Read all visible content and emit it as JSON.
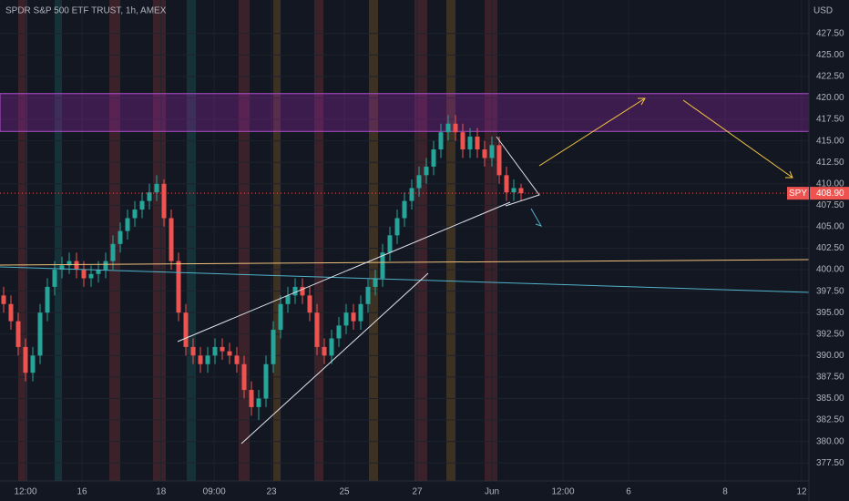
{
  "chart_data": {
    "type": "candlestick",
    "title": "SPDR S&P 500 ETF TRUST, 1h, AMEX",
    "currency": "USD",
    "symbol_label": "SPY",
    "last_price": {
      "value": 408.9,
      "label": "408.90"
    },
    "resistance_zone": [
      416.1,
      420.5
    ],
    "up_color": "#26a69a",
    "down_color": "#ef5350",
    "grid": true,
    "xlim": [
      -0.5,
      110.5
    ],
    "ylim": [
      375.4,
      431.4
    ],
    "xticks": [
      {
        "value": 3,
        "label": "12:00"
      },
      {
        "value": 10.75,
        "label": "16"
      },
      {
        "value": 21.6,
        "label": "18"
      },
      {
        "value": 28.9,
        "label": "09:00"
      },
      {
        "value": 36.75,
        "label": "23"
      },
      {
        "value": 46.75,
        "label": "25"
      },
      {
        "value": 56.75,
        "label": "27"
      },
      {
        "value": 67,
        "label": "Jun"
      },
      {
        "value": 76.75,
        "label": "12:00"
      },
      {
        "value": 85.75,
        "label": "6"
      },
      {
        "value": 99,
        "label": "8"
      },
      {
        "value": 109.5,
        "label": "12"
      }
    ],
    "yticks": [
      {
        "value": 377.5,
        "label": "377.50"
      },
      {
        "value": 380,
        "label": "380.00"
      },
      {
        "value": 382.5,
        "label": "382.50"
      },
      {
        "value": 385,
        "label": "385.00"
      },
      {
        "value": 387.5,
        "label": "387.50"
      },
      {
        "value": 390,
        "label": "390.00"
      },
      {
        "value": 392.5,
        "label": "392.50"
      },
      {
        "value": 395,
        "label": "395.00"
      },
      {
        "value": 397.5,
        "label": "397.50"
      },
      {
        "value": 400,
        "label": "400.00"
      },
      {
        "value": 402.5,
        "label": "402.50"
      },
      {
        "value": 405,
        "label": "405.00"
      },
      {
        "value": 407.5,
        "label": "407.50"
      },
      {
        "value": 410,
        "label": "410.00"
      },
      {
        "value": 412.5,
        "label": "412.50"
      },
      {
        "value": 415,
        "label": "415.00"
      },
      {
        "value": 417.5,
        "label": "417.50"
      },
      {
        "value": 420,
        "label": "420.00"
      },
      {
        "value": 422.5,
        "label": "422.50"
      },
      {
        "value": 425,
        "label": "425.00"
      },
      {
        "value": 427.5,
        "label": "427.50"
      }
    ],
    "open": [
      397,
      396,
      394,
      391,
      388,
      390,
      395,
      398,
      400,
      400.5,
      401,
      400,
      399,
      399.5,
      400,
      401,
      403,
      404.5,
      406,
      407,
      408,
      409,
      410,
      406,
      401,
      395,
      391,
      390,
      389,
      390,
      391,
      390.5,
      390,
      389,
      386,
      384,
      385,
      389,
      393,
      396,
      397,
      398,
      397,
      395,
      391,
      390,
      392,
      393.5,
      395,
      394,
      396,
      398,
      399,
      402,
      404,
      406,
      408,
      409.5,
      411,
      412,
      414,
      416,
      417,
      416,
      414,
      415.5,
      414,
      413,
      414.5,
      411,
      409,
      409.5
    ],
    "high": [
      398,
      397,
      395,
      392,
      391,
      396,
      399,
      401,
      401.5,
      402,
      402,
      401,
      400.5,
      401,
      402,
      404,
      405.5,
      407,
      408,
      409,
      410,
      411,
      410.5,
      407,
      402,
      396,
      392,
      391,
      391,
      392,
      392,
      391.5,
      391,
      390,
      387,
      386,
      390,
      394,
      397,
      398,
      399,
      399,
      398,
      396,
      392,
      393,
      394.5,
      396,
      396,
      397,
      399,
      400,
      403,
      405,
      407,
      409,
      410.5,
      412,
      413,
      415,
      417,
      418,
      418,
      417,
      416.5,
      416.5,
      415,
      415.5,
      415.5,
      412,
      410.5,
      410
    ],
    "low": [
      395,
      393,
      390,
      387,
      387,
      389,
      394,
      397,
      399,
      399.5,
      399,
      398,
      398,
      398.5,
      399,
      400,
      402,
      403.5,
      405,
      406,
      407,
      408,
      405,
      400,
      394,
      390,
      389,
      388,
      388,
      389,
      389.5,
      389,
      388,
      385,
      383,
      382.5,
      384,
      388,
      392,
      395,
      396,
      396,
      394,
      390,
      389,
      389,
      391,
      392.5,
      393,
      393,
      395,
      397,
      398,
      401,
      403,
      405,
      407,
      408.5,
      410,
      411,
      413,
      415,
      415,
      413,
      413,
      413,
      412,
      412,
      410,
      408,
      408,
      408
    ],
    "close": [
      396,
      394,
      391,
      388,
      390,
      395,
      398,
      400,
      400.5,
      401,
      400,
      399,
      399.5,
      400,
      401,
      403,
      404.5,
      406,
      407,
      408,
      409,
      410,
      406,
      401,
      395,
      391,
      390,
      389,
      390,
      391,
      390.5,
      390,
      389,
      386,
      384,
      385,
      389,
      393,
      396,
      397,
      398,
      397,
      395,
      391,
      390,
      392,
      393.5,
      395,
      394,
      396,
      398,
      399,
      402,
      404,
      406,
      408,
      409.5,
      411,
      412,
      414,
      416,
      417,
      416,
      414,
      415.5,
      414,
      413,
      414.5,
      411,
      409,
      409.5,
      408.9
    ]
  }
}
